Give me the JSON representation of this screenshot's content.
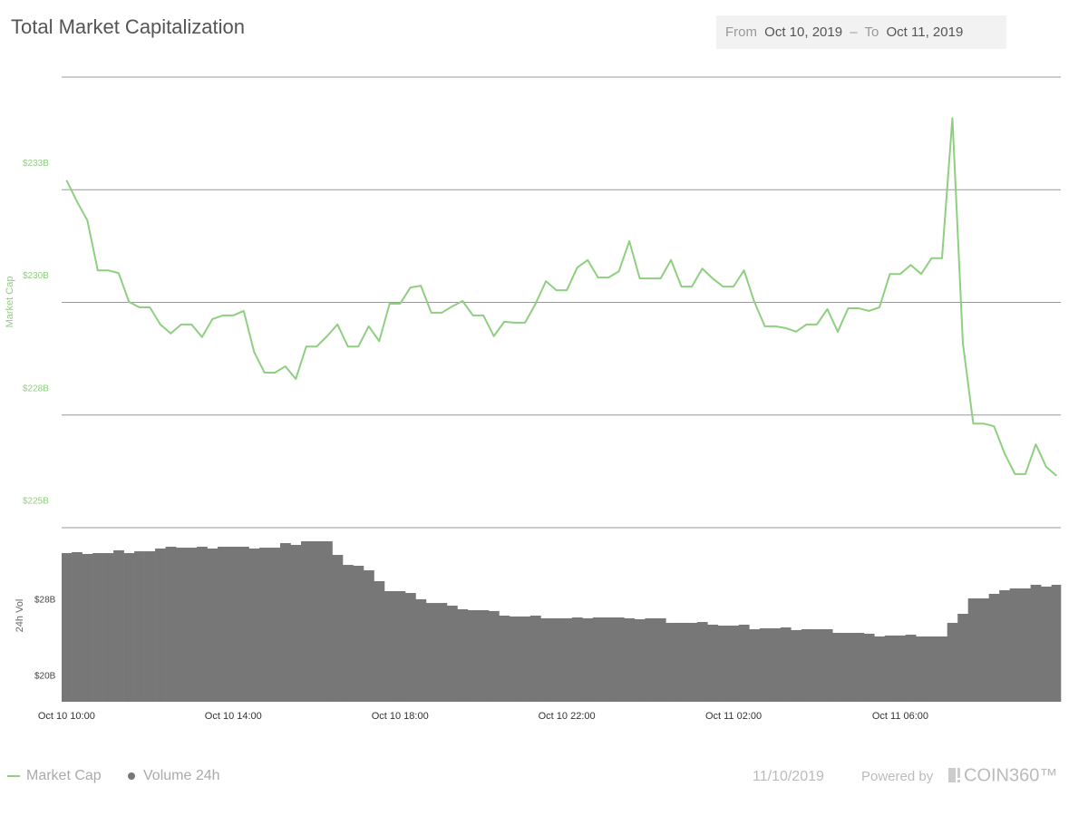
{
  "chart_data": {
    "type": "line",
    "title": "Total Market Capitalization",
    "date_range": {
      "from_label": "From",
      "from": "Oct 10, 2019",
      "separator": "–",
      "to_label": "To",
      "to": "Oct 11, 2019"
    },
    "y_label": "Market Cap",
    "y2_label": "24h Vol",
    "x": [
      "2019-10-10T10:00",
      "2019-10-10T10:15",
      "2019-10-10T10:30",
      "2019-10-10T10:45",
      "2019-10-10T11:00",
      "2019-10-10T11:15",
      "2019-10-10T11:30",
      "2019-10-10T11:45",
      "2019-10-10T12:00",
      "2019-10-10T12:15",
      "2019-10-10T12:30",
      "2019-10-10T12:45",
      "2019-10-10T13:00",
      "2019-10-10T13:15",
      "2019-10-10T13:30",
      "2019-10-10T13:45",
      "2019-10-10T14:00",
      "2019-10-10T14:15",
      "2019-10-10T14:30",
      "2019-10-10T14:45",
      "2019-10-10T15:00",
      "2019-10-10T15:15",
      "2019-10-10T15:30",
      "2019-10-10T15:45",
      "2019-10-10T16:00",
      "2019-10-10T16:15",
      "2019-10-10T16:30",
      "2019-10-10T16:45",
      "2019-10-10T17:00",
      "2019-10-10T17:15",
      "2019-10-10T17:30",
      "2019-10-10T17:45",
      "2019-10-10T18:00",
      "2019-10-10T18:15",
      "2019-10-10T18:30",
      "2019-10-10T18:45",
      "2019-10-10T19:00",
      "2019-10-10T19:15",
      "2019-10-10T19:30",
      "2019-10-10T19:45",
      "2019-10-10T20:00",
      "2019-10-10T20:15",
      "2019-10-10T20:30",
      "2019-10-10T20:45",
      "2019-10-10T21:00",
      "2019-10-10T21:15",
      "2019-10-10T21:30",
      "2019-10-10T21:45",
      "2019-10-10T22:00",
      "2019-10-10T22:15",
      "2019-10-10T22:30",
      "2019-10-10T22:45",
      "2019-10-10T23:00",
      "2019-10-10T23:15",
      "2019-10-10T23:30",
      "2019-10-10T23:45",
      "2019-10-11T00:00",
      "2019-10-11T00:15",
      "2019-10-11T00:30",
      "2019-10-11T00:45",
      "2019-10-11T01:00",
      "2019-10-11T01:15",
      "2019-10-11T01:30",
      "2019-10-11T01:45",
      "2019-10-11T02:00",
      "2019-10-11T02:15",
      "2019-10-11T02:30",
      "2019-10-11T02:45",
      "2019-10-11T03:00",
      "2019-10-11T03:15",
      "2019-10-11T03:30",
      "2019-10-11T03:45",
      "2019-10-11T04:00",
      "2019-10-11T04:15",
      "2019-10-11T04:30",
      "2019-10-11T04:45",
      "2019-10-11T05:00",
      "2019-10-11T05:15",
      "2019-10-11T05:30",
      "2019-10-11T05:45",
      "2019-10-11T06:00",
      "2019-10-11T06:15",
      "2019-10-11T06:30",
      "2019-10-11T06:45",
      "2019-10-11T07:00",
      "2019-10-11T07:15",
      "2019-10-11T07:30",
      "2019-10-11T07:45",
      "2019-10-11T08:00",
      "2019-10-11T08:15",
      "2019-10-11T08:30",
      "2019-10-11T08:45",
      "2019-10-11T09:00",
      "2019-10-11T09:15",
      "2019-10-11T09:30",
      "2019-10-11T09:45"
    ],
    "xlim": [
      "2019-10-10T09:53",
      "2019-10-11T09:51"
    ],
    "xticks": [
      {
        "value": "2019-10-10T10:00",
        "label": "Oct 10 10:00"
      },
      {
        "value": "2019-10-10T14:00",
        "label": "Oct 10 14:00"
      },
      {
        "value": "2019-10-10T18:00",
        "label": "Oct 10 18:00"
      },
      {
        "value": "2019-10-10T22:00",
        "label": "Oct 10 22:00"
      },
      {
        "value": "2019-10-11T02:00",
        "label": "Oct 11 02:00"
      },
      {
        "value": "2019-10-11T06:00",
        "label": "Oct 11 06:00"
      }
    ],
    "ylim": [
      225,
      235
    ],
    "yticks": [
      {
        "value": 225,
        "label": "$225B"
      },
      {
        "value": 227.5,
        "label": "$228B"
      },
      {
        "value": 230,
        "label": "$230B"
      },
      {
        "value": 232.5,
        "label": "$233B"
      }
    ],
    "y2lim": [
      17.33,
      35.62
    ],
    "y2ticks": [
      {
        "value": 20,
        "label": "$20B"
      },
      {
        "value": 28,
        "label": "$28B"
      }
    ],
    "grid": true,
    "series": [
      {
        "name": "Market Cap",
        "type": "line",
        "color": "#8fcf80",
        "values": [
          232.71,
          232.24,
          231.82,
          230.71,
          230.71,
          230.65,
          230.01,
          229.89,
          229.89,
          229.51,
          229.31,
          229.51,
          229.51,
          229.23,
          229.63,
          229.71,
          229.71,
          229.81,
          228.9,
          228.44,
          228.44,
          228.58,
          228.3,
          229.02,
          229.02,
          229.25,
          229.51,
          229.02,
          229.02,
          229.47,
          229.14,
          229.97,
          229.97,
          230.33,
          230.37,
          229.77,
          229.77,
          229.91,
          230.03,
          229.71,
          229.71,
          229.25,
          229.57,
          229.55,
          229.55,
          229.97,
          230.47,
          230.27,
          230.27,
          230.77,
          230.94,
          230.55,
          230.55,
          230.69,
          231.36,
          230.53,
          230.53,
          230.53,
          230.94,
          230.35,
          230.35,
          230.75,
          230.53,
          230.35,
          230.35,
          230.71,
          230.01,
          229.47,
          229.47,
          229.43,
          229.35,
          229.51,
          229.51,
          229.85,
          229.35,
          229.87,
          229.87,
          229.81,
          229.89,
          230.63,
          230.63,
          230.83,
          230.63,
          230.98,
          230.98,
          234.09,
          229.1,
          227.31,
          227.31,
          227.25,
          226.65,
          226.19,
          226.19,
          226.85,
          226.35,
          226.15
        ]
      },
      {
        "name": "Volume 24h",
        "type": "bar",
        "axis": "y2",
        "color": "#777777",
        "values": [
          32.95,
          33.05,
          32.86,
          32.95,
          32.95,
          33.24,
          32.95,
          33.14,
          33.14,
          33.43,
          33.62,
          33.52,
          33.52,
          33.62,
          33.43,
          33.62,
          33.62,
          33.62,
          33.43,
          33.52,
          33.52,
          34.0,
          33.81,
          34.19,
          34.19,
          34.19,
          32.76,
          31.71,
          31.62,
          31.14,
          30.0,
          28.95,
          28.95,
          28.76,
          28.1,
          27.71,
          27.71,
          27.43,
          27.05,
          26.95,
          26.95,
          26.86,
          26.38,
          26.29,
          26.29,
          26.38,
          26.1,
          26.1,
          26.1,
          26.19,
          26.1,
          26.19,
          26.19,
          26.19,
          26.1,
          26.0,
          26.1,
          26.1,
          25.62,
          25.62,
          25.62,
          25.71,
          25.43,
          25.33,
          25.33,
          25.43,
          24.95,
          25.05,
          25.05,
          25.14,
          24.86,
          24.95,
          24.95,
          24.95,
          24.57,
          24.57,
          24.57,
          24.48,
          24.19,
          24.29,
          24.29,
          24.38,
          24.19,
          24.19,
          24.19,
          25.62,
          26.57,
          28.19,
          28.19,
          28.67,
          29.05,
          29.24,
          29.24,
          29.62,
          29.43,
          29.62
        ]
      }
    ]
  },
  "footer": {
    "date": "11/10/2019",
    "powered_by": "Powered by",
    "brand": "COIN360™"
  }
}
